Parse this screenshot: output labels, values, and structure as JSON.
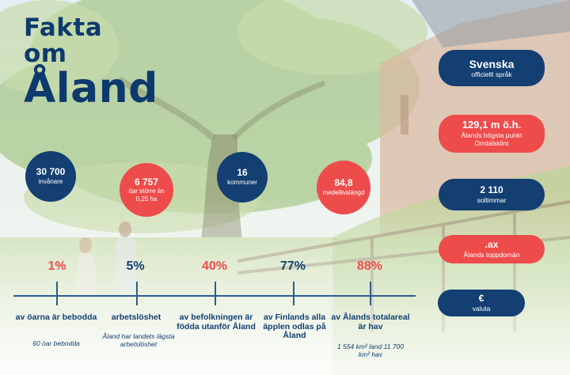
{
  "title": {
    "line1": "Fakta",
    "line2": "om",
    "line3": "Åland"
  },
  "circles": [
    {
      "value": "30 700",
      "label": "invånare",
      "color": "#133f72"
    },
    {
      "value": "6 757",
      "label": "öar större än 0,25 ha",
      "color": "#ee4c4b"
    },
    {
      "value": "16",
      "label": "kommuner",
      "color": "#133f72"
    },
    {
      "value": "84,8",
      "label": "medellivslängd",
      "color": "#ee4c4b"
    }
  ],
  "pills": [
    {
      "value": "Svenska",
      "label": "officiellt språk",
      "color": "#133f72"
    },
    {
      "value": "129,1 m ö.h.",
      "label": "Ålands högsta punkt Orrdalsklint",
      "color": "#ee4c4b"
    },
    {
      "value": "2 110",
      "label": "soltimmar",
      "color": "#133f72"
    },
    {
      "value": ".ax",
      "label": "Ålands toppdomän",
      "color": "#ee4c4b"
    },
    {
      "value": "€",
      "label": "valuta",
      "color": "#133f72"
    }
  ],
  "timeline": [
    {
      "percent": "1%",
      "text": "av öarna är bebodda",
      "sub": "60 öar bebodda",
      "color": "#ee4c4b"
    },
    {
      "percent": "5%",
      "text": "arbetslöshet",
      "sub": "Åland har landets lägsta arbetslöshet",
      "color": "#133f72"
    },
    {
      "percent": "40%",
      "text": "av befolkningen är födda utanför Åland",
      "sub": "",
      "color": "#ee4c4b"
    },
    {
      "percent": "77%",
      "text": "av Finlands alla äpplen odlas på Åland",
      "sub": "",
      "color": "#133f72"
    },
    {
      "percent": "88%",
      "text": "av Ålands totalareal är hav",
      "sub": "1 554 km² land 11 700 km² hav",
      "color": "#ee4c4b"
    }
  ],
  "colors": {
    "navy": "#133f72",
    "red": "#ee4c4b"
  }
}
